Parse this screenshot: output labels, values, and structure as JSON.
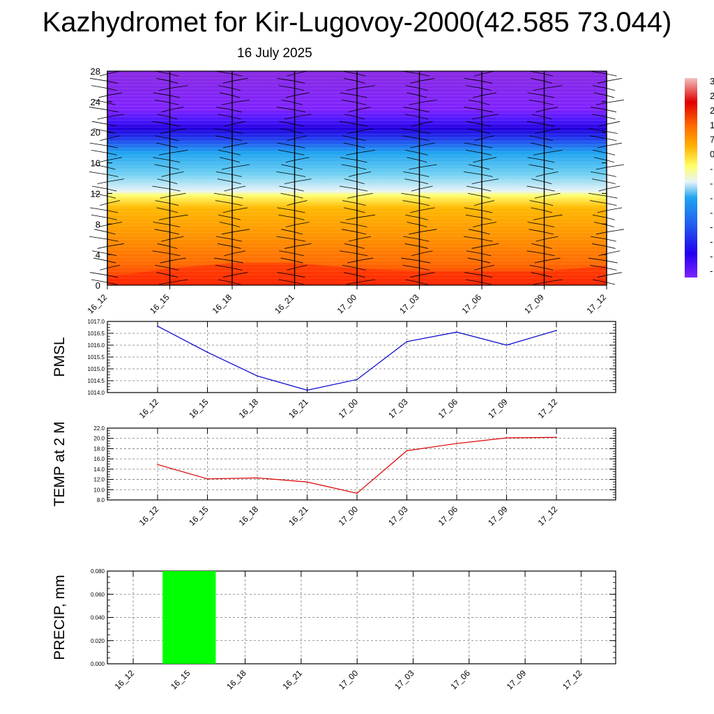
{
  "header": {
    "title": "Kazhydromet for Kir-Lugovoy-2000(42.585 73.044)",
    "date": "16 July 2025"
  },
  "chart_data": [
    {
      "type": "heatmap",
      "title": "",
      "ylim": [
        0,
        28
      ],
      "yticks": [
        "0",
        "4",
        "8",
        "12",
        "16",
        "20",
        "24",
        "28"
      ],
      "categories": [
        "16_12",
        "16_15",
        "16_18",
        "16_21",
        "17_00",
        "17_03",
        "17_06",
        "17_09",
        "17_12"
      ],
      "surface_values": [
        19,
        22,
        24,
        24,
        22,
        21,
        21,
        21,
        23
      ],
      "colorbar_labels": [
        "3",
        "2",
        "2",
        "1",
        "7",
        "0",
        "-",
        "-",
        "-",
        "-",
        "-",
        "-",
        "-",
        "-"
      ],
      "colors": [
        "#7f22ff",
        "#2200ee",
        "#1fa3f0",
        "#e8f4f8",
        "#ffff66",
        "#ffb000",
        "#ff6a00",
        "#e00000",
        "#f2c0c0"
      ]
    },
    {
      "type": "line",
      "ylabel": "PMSL",
      "ylim": [
        1014.0,
        1017.0
      ],
      "yticks": [
        "1014.0",
        "1014.5",
        "1015.0",
        "1015.5",
        "1016.0",
        "1016.5",
        "1017.0"
      ],
      "categories": [
        "16_12",
        "16_15",
        "16_18",
        "16_21",
        "17_00",
        "17_03",
        "17_06",
        "17_09",
        "17_12"
      ],
      "values": [
        1016.8,
        1015.7,
        1014.7,
        1014.1,
        1014.55,
        1016.15,
        1016.55,
        1016.0,
        1016.62
      ],
      "color": "#0000cc"
    },
    {
      "type": "line",
      "ylabel": "TEMP at 2 M",
      "ylim": [
        8.0,
        22.0
      ],
      "yticks": [
        "8.0",
        "10.0",
        "12.0",
        "14.0",
        "16.0",
        "18.0",
        "20.0",
        "22.0"
      ],
      "categories": [
        "16_12",
        "16_15",
        "16_18",
        "16_21",
        "17_00",
        "17_03",
        "17_06",
        "17_09",
        "17_12"
      ],
      "values": [
        14.9,
        12.1,
        12.3,
        11.5,
        9.3,
        17.6,
        19.0,
        20.1,
        20.2
      ],
      "color": "#dd0000"
    },
    {
      "type": "bar",
      "ylabel": "PRECIP, mm",
      "ylim": [
        0,
        0.08
      ],
      "yticks": [
        "0.000",
        "0.020",
        "0.040",
        "0.060",
        "0.080"
      ],
      "categories": [
        "16_12",
        "16_15",
        "16_18",
        "16_21",
        "17_00",
        "17_03",
        "17_06",
        "17_09",
        "17_12"
      ],
      "values": [
        0,
        0.08,
        0,
        0,
        0,
        0,
        0,
        0,
        0
      ],
      "color": "#00ff00"
    }
  ]
}
